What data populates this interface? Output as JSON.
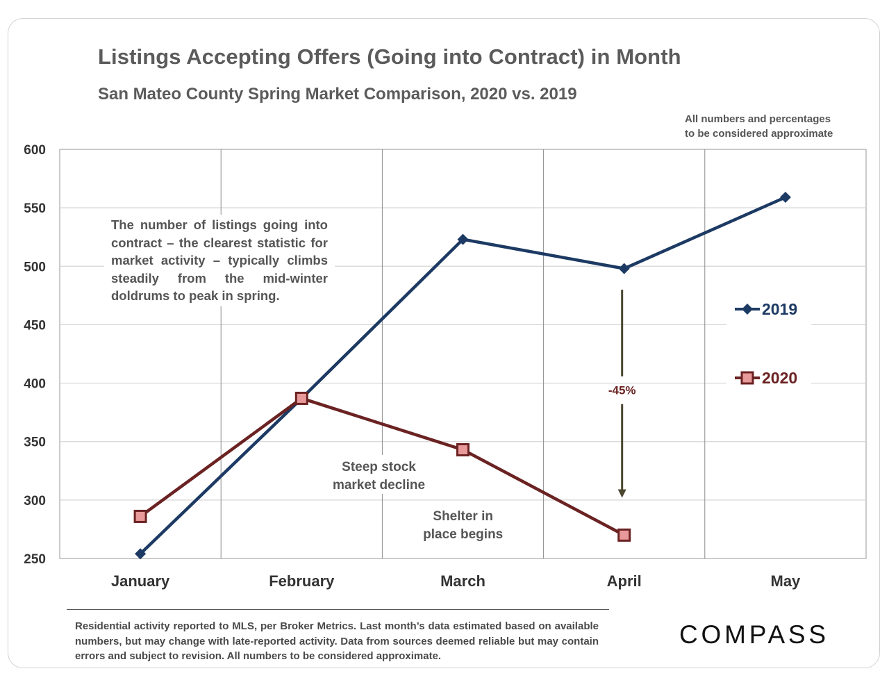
{
  "header": {
    "title": "Listings Accepting Offers (Going into Contract) in Month",
    "subtitle": "San Mateo County Spring Market Comparison, 2020 vs. 2019",
    "approx_note_line1": "All numbers and percentages",
    "approx_note_line2": "to be considered approximate"
  },
  "annotation": {
    "description": "The number of listings going into contract – the clearest statistic for market activity – typically climbs steadily from the mid-winter doldrums to peak in spring."
  },
  "chart_data": {
    "type": "line",
    "title": "Listings Accepting Offers (Going into Contract) in Month",
    "subtitle": "San Mateo County Spring Market Comparison, 2020 vs. 2019",
    "categories": [
      "January",
      "February",
      "March",
      "April",
      "May"
    ],
    "yticks": [
      250,
      300,
      350,
      400,
      450,
      500,
      550,
      600
    ],
    "ylim": [
      250,
      600
    ],
    "grid": true,
    "legend_position": "right",
    "series": [
      {
        "name": "2019",
        "color": "#1c3a63",
        "marker": "diamond",
        "values": [
          254,
          387,
          523,
          498,
          559
        ]
      },
      {
        "name": "2020",
        "color": "#6b2222",
        "marker": "square",
        "values": [
          286,
          387,
          343,
          270,
          null
        ]
      }
    ],
    "annotations": [
      {
        "text_line1": "Steep stock",
        "text_line2": "market decline",
        "near": "March"
      },
      {
        "text_line1": "Shelter in",
        "text_line2": "place  begins",
        "near": "April"
      },
      {
        "text": "-45%",
        "category": "April",
        "from": 480,
        "to": 302
      }
    ]
  },
  "footer": {
    "disclaimer": "Residential activity reported to MLS, per Broker Metrics. Last month’s data estimated based on available numbers, but may change with late-reported activity. Data from sources deemed reliable but may contain errors and subject to revision. All numbers to be considered approximate.",
    "logo": "COMPASS"
  },
  "colors": {
    "series_2019": "#1c3a63",
    "series_2020": "#6b2222",
    "marker_2020_fill": "#e89a9a",
    "arrow": "#4a4630",
    "pct_label": "#6b2222",
    "grid": "#d4d4d4"
  }
}
